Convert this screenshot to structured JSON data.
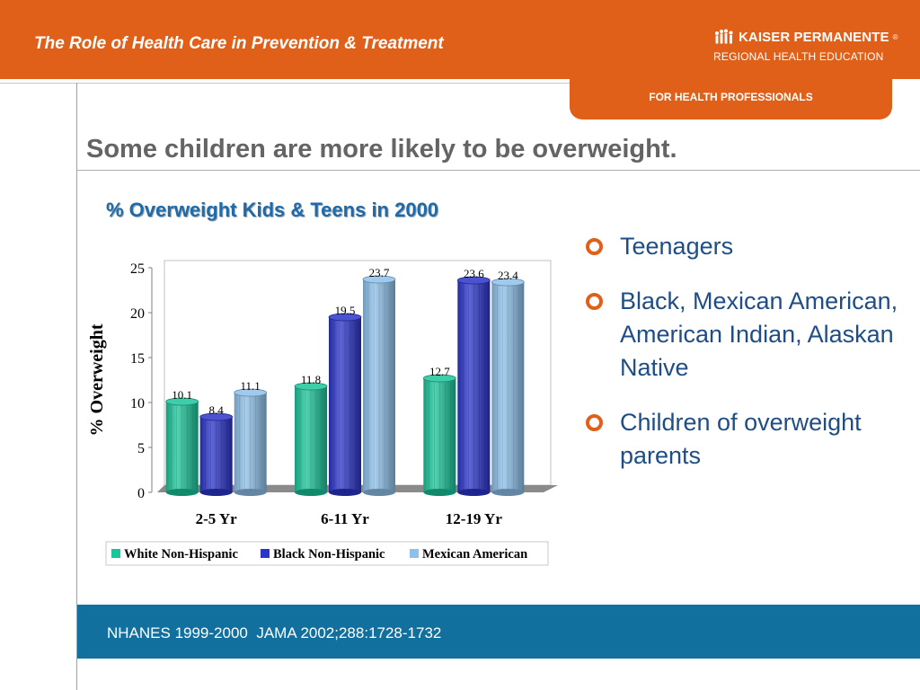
{
  "header": {
    "title": "The Role of Health Care in Prevention & Treatment",
    "brand_name": "KAISER PERMANENTE",
    "brand_reg": "®",
    "brand_sub": "REGIONAL HEALTH EDUCATION",
    "audience_tab": "FOR HEALTH PROFESSIONALS"
  },
  "slide": {
    "title": "Some children are more likely to be overweight."
  },
  "bullets": [
    "Teenagers",
    "Black, Mexican American, American Indian, Alaskan Native",
    "Children of overweight parents"
  ],
  "footer": {
    "citation": "NHANES 1999-2000  JAMA 2002;288:1728-1732"
  },
  "colors": {
    "accent": "#e0601a",
    "title_blue": "#1f6aa8",
    "footer_blue": "#12709f"
  },
  "chart_data": {
    "type": "bar",
    "title": "% Overweight Kids & Teens in 2000",
    "ylabel": "% Overweight",
    "xlabel": "",
    "ylim": [
      0,
      25
    ],
    "yticks": [
      0,
      5,
      10,
      15,
      20,
      25
    ],
    "categories": [
      "2-5 Yr",
      "6-11 Yr",
      "12-19 Yr"
    ],
    "series": [
      {
        "name": "White Non-Hispanic",
        "values": [
          10.1,
          11.8,
          12.7
        ],
        "color": "#1bc49a"
      },
      {
        "name": "Black Non-Hispanic",
        "values": [
          8.4,
          19.5,
          23.6
        ],
        "color": "#2b35c9"
      },
      {
        "name": "Mexican American",
        "values": [
          11.1,
          23.7,
          23.4
        ],
        "color": "#8ec0ea"
      }
    ],
    "legend_position": "bottom",
    "grid": false
  }
}
